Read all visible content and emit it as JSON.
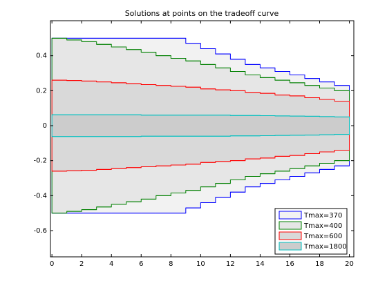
{
  "chart_data": {
    "type": "step-band",
    "title": "Solutions at points on the tradeoff curve",
    "edges": [
      0,
      1,
      2,
      3,
      4,
      5,
      6,
      7,
      8,
      9,
      10,
      11,
      12,
      13,
      14,
      15,
      16,
      17,
      18,
      19,
      20
    ],
    "xlim": [
      -0.1,
      20.3
    ],
    "ylim": [
      -0.75,
      0.6
    ],
    "xticks": [
      0,
      2,
      4,
      6,
      8,
      10,
      12,
      14,
      16,
      18,
      20
    ],
    "yticks": [
      -0.6,
      -0.4,
      -0.2,
      0,
      0.2,
      0.4
    ],
    "legend": "lower right",
    "series": [
      {
        "name": "Tmax=370",
        "color": "#0000ff",
        "fill": "#f2f2f2",
        "values": [
          0.5,
          0.5,
          0.5,
          0.5,
          0.5,
          0.5,
          0.5,
          0.5,
          0.5,
          0.47,
          0.44,
          0.41,
          0.38,
          0.35,
          0.33,
          0.31,
          0.29,
          0.27,
          0.25,
          0.23
        ],
        "lower": [
          -0.5,
          -0.5,
          -0.5,
          -0.5,
          -0.5,
          -0.5,
          -0.5,
          -0.5,
          -0.5,
          -0.47,
          -0.44,
          -0.41,
          -0.38,
          -0.35,
          -0.33,
          -0.31,
          -0.29,
          -0.27,
          -0.25,
          -0.23
        ]
      },
      {
        "name": "Tmax=400",
        "color": "#008000",
        "fill": "#e6e6e6",
        "values": [
          0.5,
          0.49,
          0.48,
          0.465,
          0.45,
          0.435,
          0.42,
          0.4,
          0.385,
          0.37,
          0.35,
          0.33,
          0.31,
          0.29,
          0.275,
          0.26,
          0.245,
          0.23,
          0.215,
          0.2
        ],
        "lower": [
          -0.5,
          -0.49,
          -0.48,
          -0.465,
          -0.45,
          -0.435,
          -0.42,
          -0.4,
          -0.385,
          -0.37,
          -0.35,
          -0.33,
          -0.31,
          -0.29,
          -0.275,
          -0.26,
          -0.245,
          -0.23,
          -0.215,
          -0.2
        ]
      },
      {
        "name": "Tmax=600",
        "color": "#ff0000",
        "fill": "#d9d9d9",
        "values": [
          0.26,
          0.258,
          0.255,
          0.25,
          0.245,
          0.24,
          0.235,
          0.23,
          0.225,
          0.22,
          0.21,
          0.205,
          0.2,
          0.19,
          0.185,
          0.175,
          0.17,
          0.16,
          0.15,
          0.14
        ],
        "lower": [
          -0.26,
          -0.258,
          -0.255,
          -0.25,
          -0.245,
          -0.24,
          -0.235,
          -0.23,
          -0.225,
          -0.22,
          -0.21,
          -0.205,
          -0.2,
          -0.19,
          -0.185,
          -0.175,
          -0.17,
          -0.16,
          -0.15,
          -0.14
        ]
      },
      {
        "name": "Tmax=1800",
        "color": "#00bfbf",
        "fill": "#cccccc",
        "values": [
          0.062,
          0.062,
          0.062,
          0.062,
          0.062,
          0.062,
          0.06,
          0.06,
          0.06,
          0.06,
          0.06,
          0.06,
          0.058,
          0.058,
          0.057,
          0.056,
          0.055,
          0.054,
          0.052,
          0.05
        ],
        "lower": [
          -0.062,
          -0.062,
          -0.062,
          -0.062,
          -0.062,
          -0.062,
          -0.06,
          -0.06,
          -0.06,
          -0.06,
          -0.06,
          -0.06,
          -0.058,
          -0.058,
          -0.057,
          -0.056,
          -0.055,
          -0.054,
          -0.052,
          -0.05
        ]
      }
    ]
  }
}
